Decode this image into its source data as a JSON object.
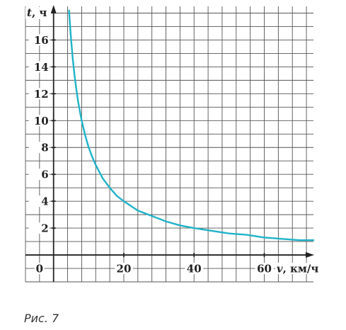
{
  "caption": "Рис. 7",
  "chart_data": {
    "type": "line",
    "xlabel_italic": "v",
    "xlabel_rest": ", км/ч",
    "ylabel_italic": "t",
    "ylabel_rest": ", ч",
    "origin_label": "0",
    "xlim": [
      -8,
      74
    ],
    "ylim": [
      -2,
      18.5
    ],
    "x_ticks": [
      20,
      40,
      60
    ],
    "x_tick_labels": [
      "20",
      "40",
      "60"
    ],
    "y_ticks": [
      2,
      4,
      6,
      8,
      10,
      12,
      14,
      16
    ],
    "y_tick_labels": [
      "2",
      "4",
      "6",
      "8",
      "10",
      "12",
      "14",
      "16"
    ],
    "grid": true,
    "grid_step_x": 4,
    "grid_step_y": 1,
    "line_color": "#1fb3c8",
    "grid_color": "#555555",
    "series": [
      {
        "x": [
          4.4,
          4.8,
          5,
          5.5,
          6,
          6.5,
          7,
          8,
          9,
          10,
          11,
          12,
          14,
          16,
          18,
          20,
          24,
          28,
          32,
          36,
          40,
          45,
          50,
          55,
          60,
          65,
          70,
          74
        ],
        "y": [
          18.2,
          16.7,
          16,
          14.5,
          13.3,
          12.3,
          11.4,
          10,
          8.9,
          8,
          7.3,
          6.7,
          5.7,
          5,
          4.4,
          4,
          3.3,
          2.9,
          2.5,
          2.2,
          2,
          1.8,
          1.6,
          1.5,
          1.3,
          1.2,
          1.1,
          1.1
        ]
      }
    ]
  }
}
